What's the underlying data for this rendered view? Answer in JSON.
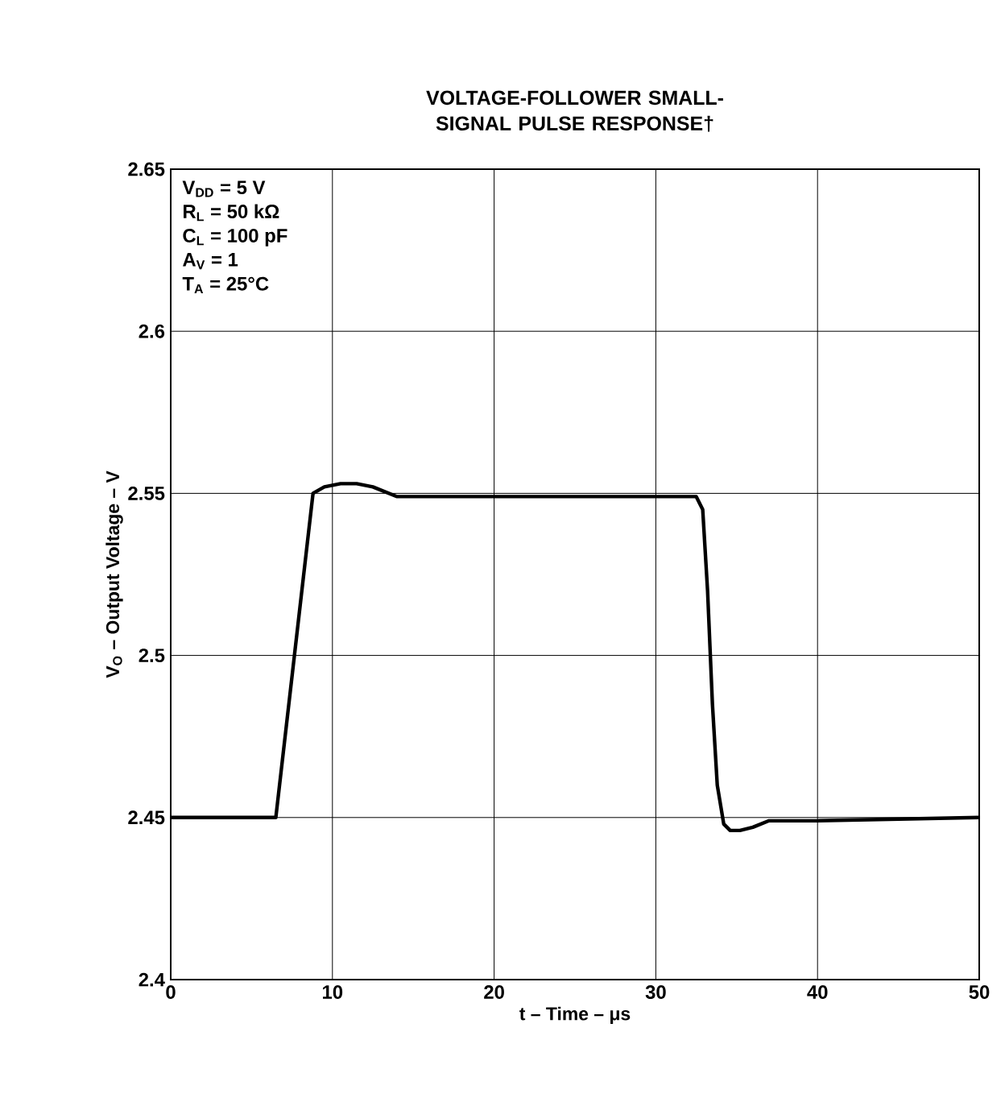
{
  "chart_data": {
    "type": "line",
    "title": "VOLTAGE-FOLLOWER SMALL-SIGNAL PULSE RESPONSE†",
    "xlabel": "t – Time – μs",
    "ylabel": "V$_{O}$ – Output Voltage – V",
    "annotations": [
      "V$_{DD}$ = 5 V",
      "R$_{L}$ = 50 kΩ",
      "C$_{L}$ = 100 pF",
      "A$_{V}$ = 1",
      "T$_{A}$ = 25°C"
    ],
    "x": [
      0,
      6.5,
      8.8,
      9.5,
      10.5,
      11.5,
      12.5,
      14,
      20,
      32.5,
      32.9,
      33.2,
      33.5,
      33.8,
      34.2,
      34.6,
      35.2,
      36,
      36.5,
      37,
      40,
      50
    ],
    "series": [
      {
        "color": "#000000",
        "values": [
          2.45,
          2.45,
          2.55,
          2.552,
          2.553,
          2.553,
          2.552,
          2.549,
          2.549,
          2.549,
          2.545,
          2.52,
          2.485,
          2.46,
          2.448,
          2.446,
          2.446,
          2.447,
          2.448,
          2.449,
          2.449,
          2.45
        ]
      }
    ],
    "xlim": [
      0,
      50
    ],
    "ylim": [
      2.4,
      2.65
    ],
    "xticks": [
      0,
      10,
      20,
      30,
      40,
      50
    ],
    "yticks": [
      2.4,
      2.45,
      2.5,
      2.55,
      2.6,
      2.65
    ],
    "grid": true,
    "marker": "none",
    "line_style": "solid"
  }
}
